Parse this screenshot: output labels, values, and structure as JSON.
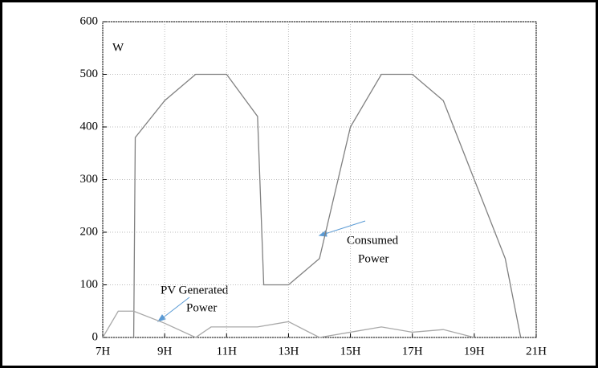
{
  "chart_data": {
    "type": "line",
    "y_unit_label": "W",
    "xlim": [
      7,
      21
    ],
    "ylim": [
      0,
      600
    ],
    "xticks": [
      {
        "value": 7,
        "label": "7H"
      },
      {
        "value": 9,
        "label": "9H"
      },
      {
        "value": 11,
        "label": "11H"
      },
      {
        "value": 13,
        "label": "13H"
      },
      {
        "value": 15,
        "label": "15H"
      },
      {
        "value": 17,
        "label": "17H"
      },
      {
        "value": 19,
        "label": "19H"
      },
      {
        "value": 21,
        "label": "21H"
      }
    ],
    "yticks": [
      0,
      100,
      200,
      300,
      400,
      500,
      600
    ],
    "grid": true,
    "series": [
      {
        "label_lines": [
          "Consumed",
          "Power"
        ],
        "color": "#808080",
        "x": [
          8,
          8.05,
          9,
          10,
          11,
          12,
          12.2,
          13,
          14,
          15,
          16,
          17,
          18,
          19,
          20,
          20.5
        ],
        "values": [
          0,
          380,
          450,
          500,
          500,
          420,
          100,
          100,
          150,
          400,
          500,
          500,
          450,
          300,
          150,
          0
        ]
      },
      {
        "label_lines": [
          "PV Generated",
          "Power"
        ],
        "color": "#a8a8a8",
        "x": [
          7,
          7.5,
          8,
          9,
          10,
          10.5,
          12,
          13,
          14,
          15,
          16,
          17,
          18,
          19
        ],
        "values": [
          0,
          50,
          50,
          27,
          0,
          20,
          20,
          30,
          0,
          10,
          20,
          10,
          15,
          0
        ]
      }
    ]
  }
}
